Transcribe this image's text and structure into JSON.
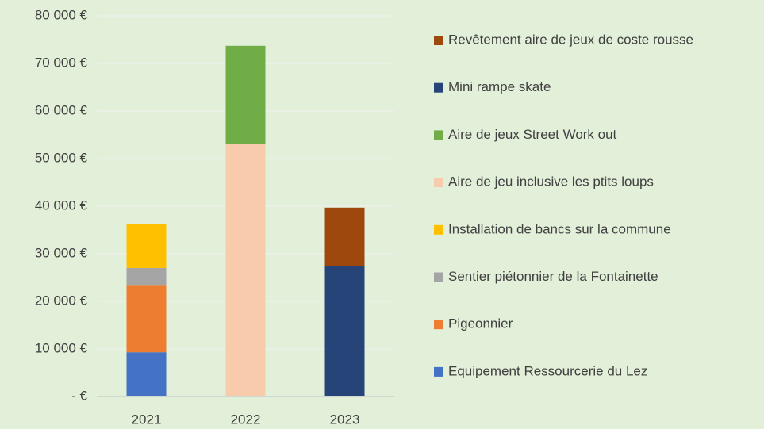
{
  "chart_data": {
    "type": "stacked_bar",
    "categories": [
      "2021",
      "2022",
      "2023"
    ],
    "series": [
      {
        "name": "Equipement Ressourcerie du Lez",
        "color": "#4472c4",
        "values": [
          9300,
          null,
          null
        ]
      },
      {
        "name": "Pigeonnier",
        "color": "#ed7d31",
        "values": [
          14000,
          null,
          null
        ]
      },
      {
        "name": "Sentier piétonnier de la Fontainette",
        "color": "#a5a5a5",
        "values": [
          3700,
          null,
          null
        ]
      },
      {
        "name": "Installation de bancs sur la commune",
        "color": "#ffc000",
        "values": [
          9200,
          null,
          null
        ]
      },
      {
        "name": "Aire de jeu inclusive les ptits loups",
        "color": "#f8cbad",
        "values": [
          null,
          53000,
          null
        ]
      },
      {
        "name": "Aire de jeux Street Work out",
        "color": "#70ad47",
        "values": [
          null,
          20700,
          null
        ]
      },
      {
        "name": "Mini rampe skate",
        "color": "#264478",
        "values": [
          null,
          null,
          27500
        ]
      },
      {
        "name": "Revêtement aire de jeux de coste rousse",
        "color": "#9e480e",
        "values": [
          null,
          null,
          12200
        ]
      }
    ],
    "ylim": [
      0,
      80000
    ],
    "yticks": [
      {
        "value": 0,
        "label": "-   €"
      },
      {
        "value": 10000,
        "label": "10 000 €"
      },
      {
        "value": 20000,
        "label": "20 000 €"
      },
      {
        "value": 30000,
        "label": "30 000 €"
      },
      {
        "value": 40000,
        "label": "40 000 €"
      },
      {
        "value": 50000,
        "label": "50 000 €"
      },
      {
        "value": 60000,
        "label": "60 000 €"
      },
      {
        "value": 70000,
        "label": "70 000 €"
      },
      {
        "value": 80000,
        "label": "80 000 €"
      }
    ],
    "grid": true,
    "legend": "right"
  }
}
